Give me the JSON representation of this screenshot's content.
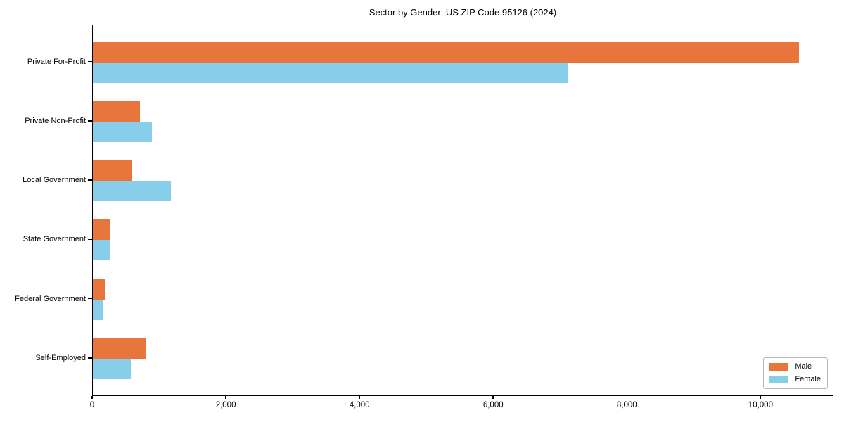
{
  "title": "Sector by Gender: US ZIP Code 95126 (2024)",
  "chart_data": {
    "type": "bar",
    "orientation": "horizontal",
    "title": "Sector by Gender: US ZIP Code 95126 (2024)",
    "xlabel": "",
    "ylabel": "",
    "categories": [
      "Private For-Profit",
      "Private Non-Profit",
      "Local Government",
      "State Government",
      "Federal Government",
      "Self-Employed"
    ],
    "series": [
      {
        "name": "Male",
        "color": "#e8763c",
        "values": [
          10560,
          700,
          580,
          260,
          190,
          800
        ]
      },
      {
        "name": "Female",
        "color": "#87ceeb",
        "values": [
          7110,
          880,
          1170,
          250,
          150,
          570
        ]
      }
    ],
    "xlim": [
      0,
      11090
    ],
    "x_ticks": [
      0,
      2000,
      4000,
      6000,
      8000,
      10000
    ],
    "x_tick_labels": [
      "0",
      "2,000",
      "4,000",
      "6,000",
      "8,000",
      "10,000"
    ],
    "grid": false,
    "legend_position": "lower right",
    "legend_entries": [
      "Male",
      "Female"
    ]
  }
}
